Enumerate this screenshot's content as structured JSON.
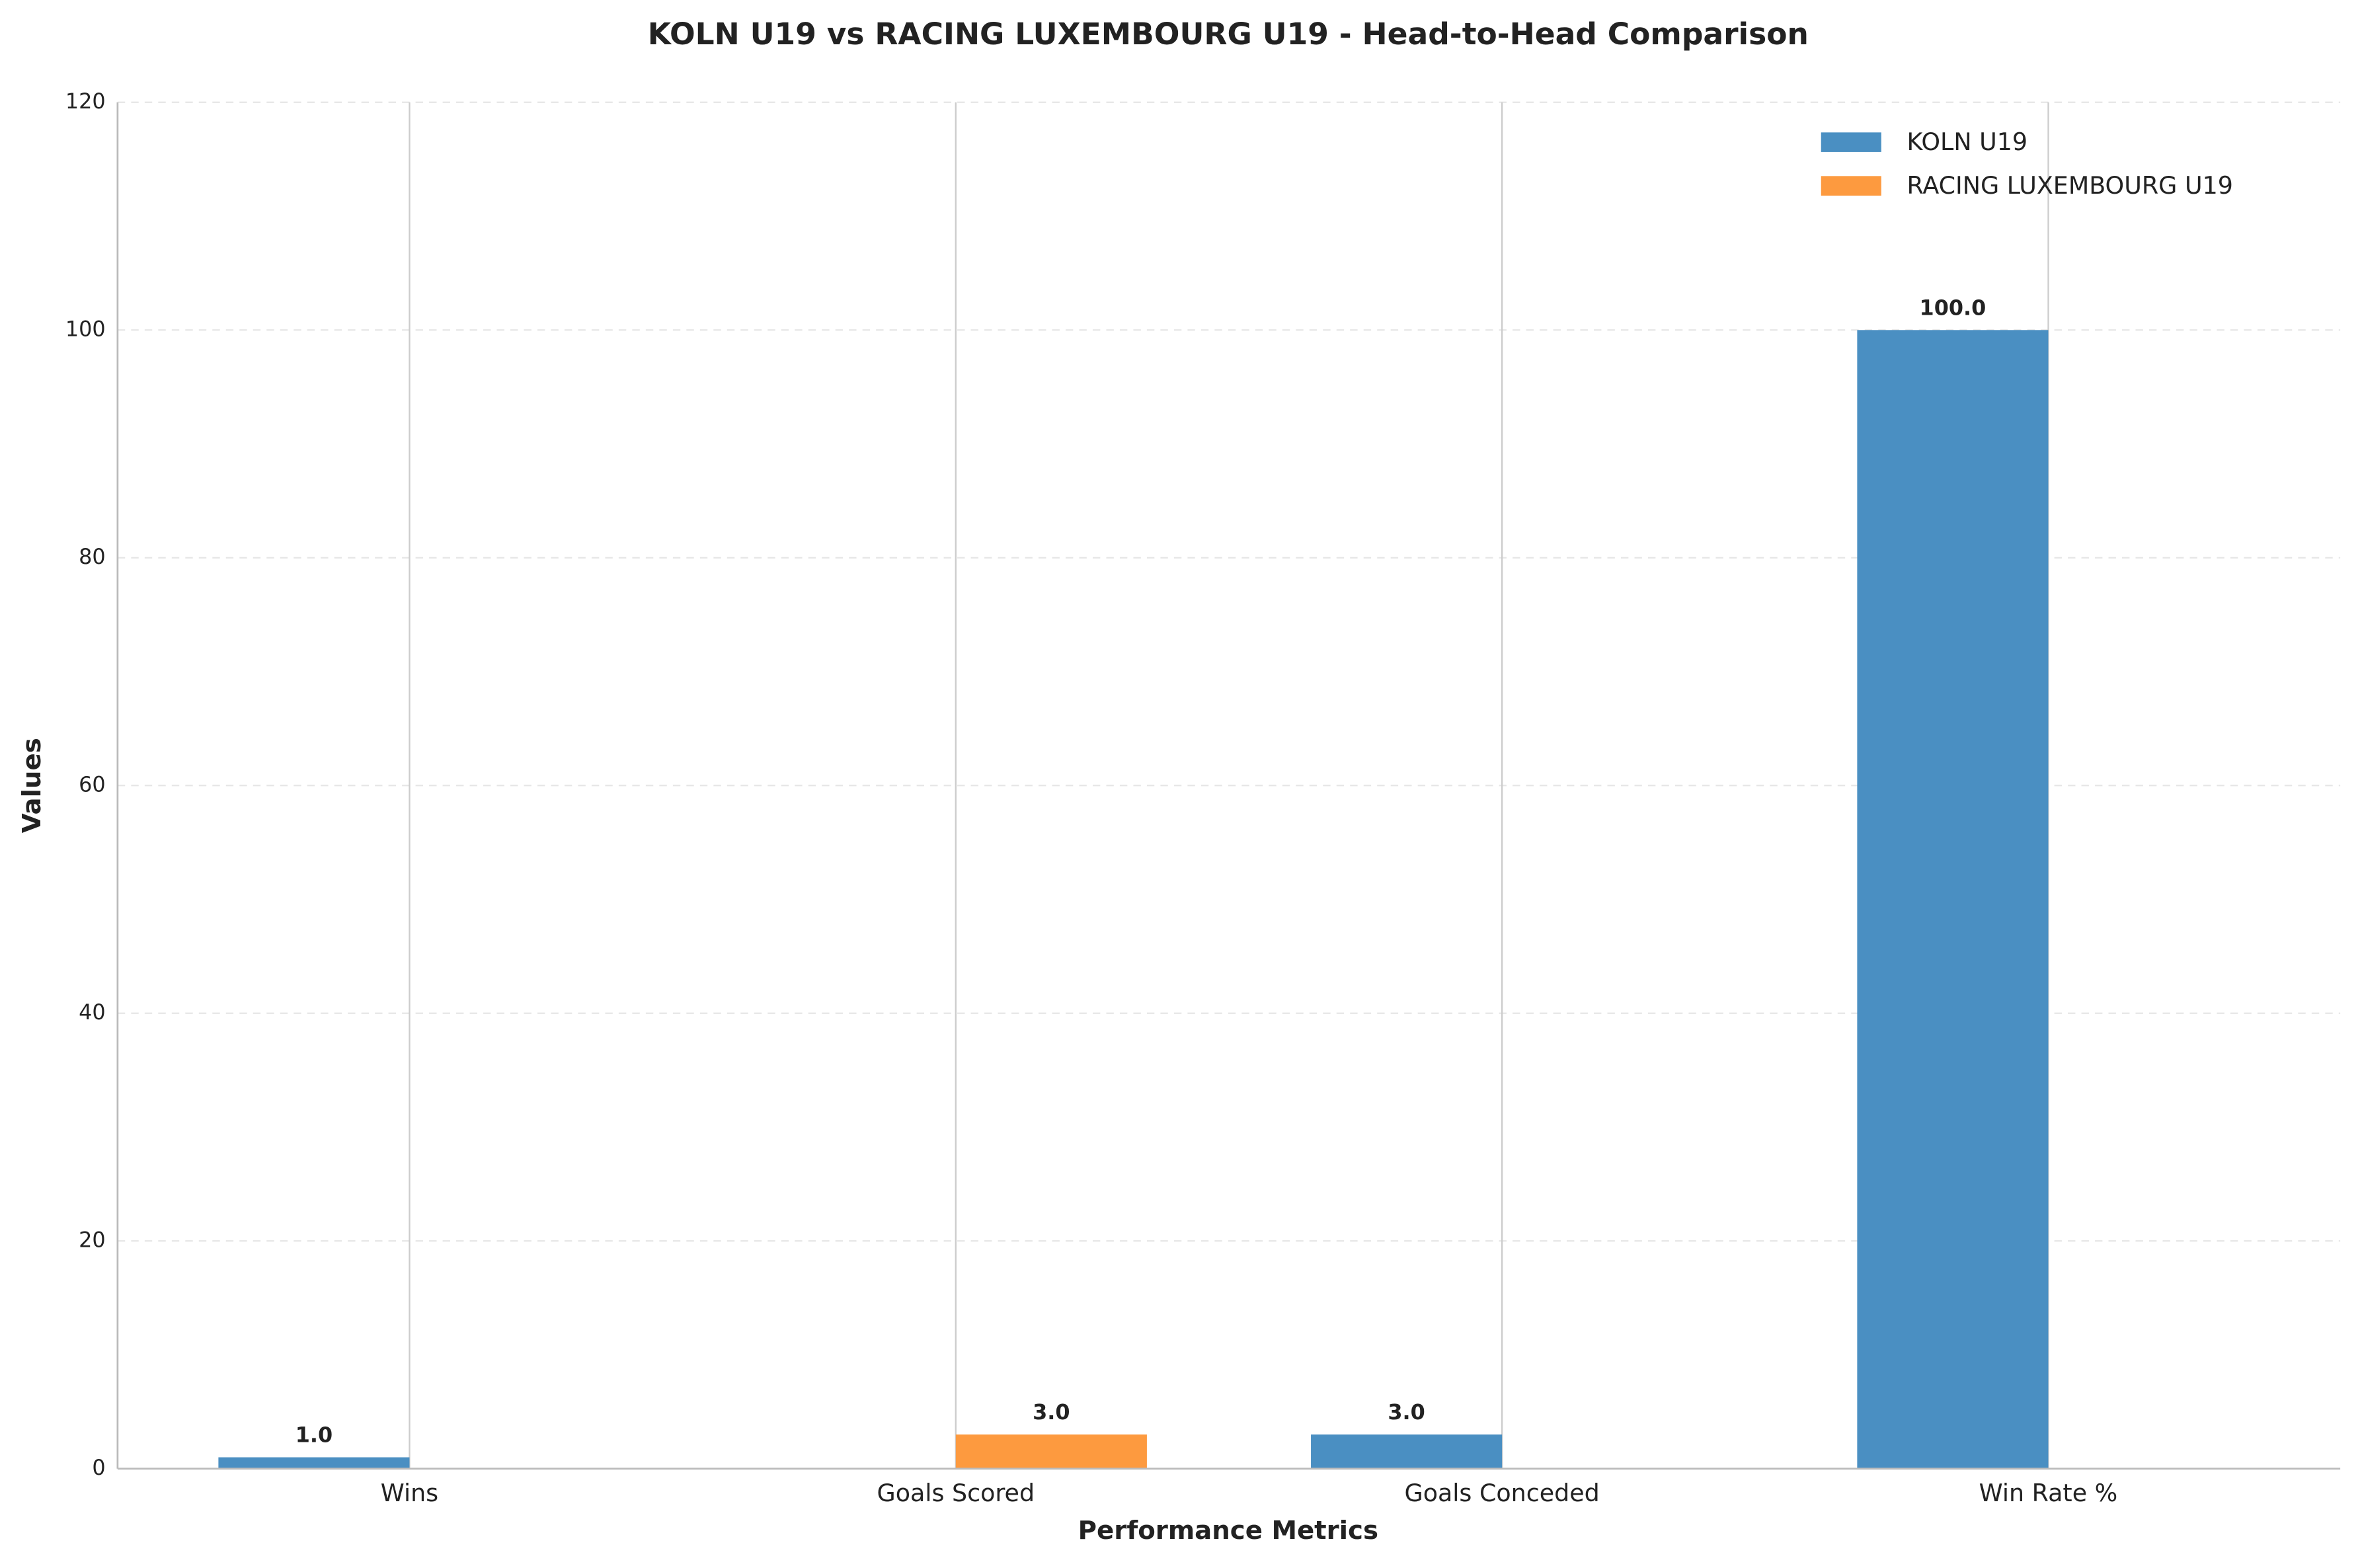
{
  "chart_data": {
    "type": "bar",
    "title": "KOLN U19 vs RACING LUXEMBOURG U19 - Head-to-Head Comparison",
    "x_label": "Performance Metrics",
    "y_label": "Values",
    "categories": [
      "Wins",
      "Goals Scored",
      "Goals Conceded",
      "Win Rate %"
    ],
    "series": [
      {
        "name": "KOLN U19",
        "color": "#4a8fc2",
        "values": [
          1,
          0,
          3,
          100
        ],
        "value_labels": [
          "1.0",
          null,
          "3.0",
          "100.0"
        ]
      },
      {
        "name": "RACING LUXEMBOURG U19",
        "color": "#fd9a3f",
        "values": [
          0,
          3,
          0,
          0
        ],
        "value_labels": [
          null,
          "3.0",
          null,
          null
        ]
      }
    ],
    "ylim": [
      0,
      120
    ],
    "yticks": [
      0,
      20,
      40,
      60,
      80,
      100,
      120
    ],
    "grid": true,
    "legend": "upper right"
  }
}
